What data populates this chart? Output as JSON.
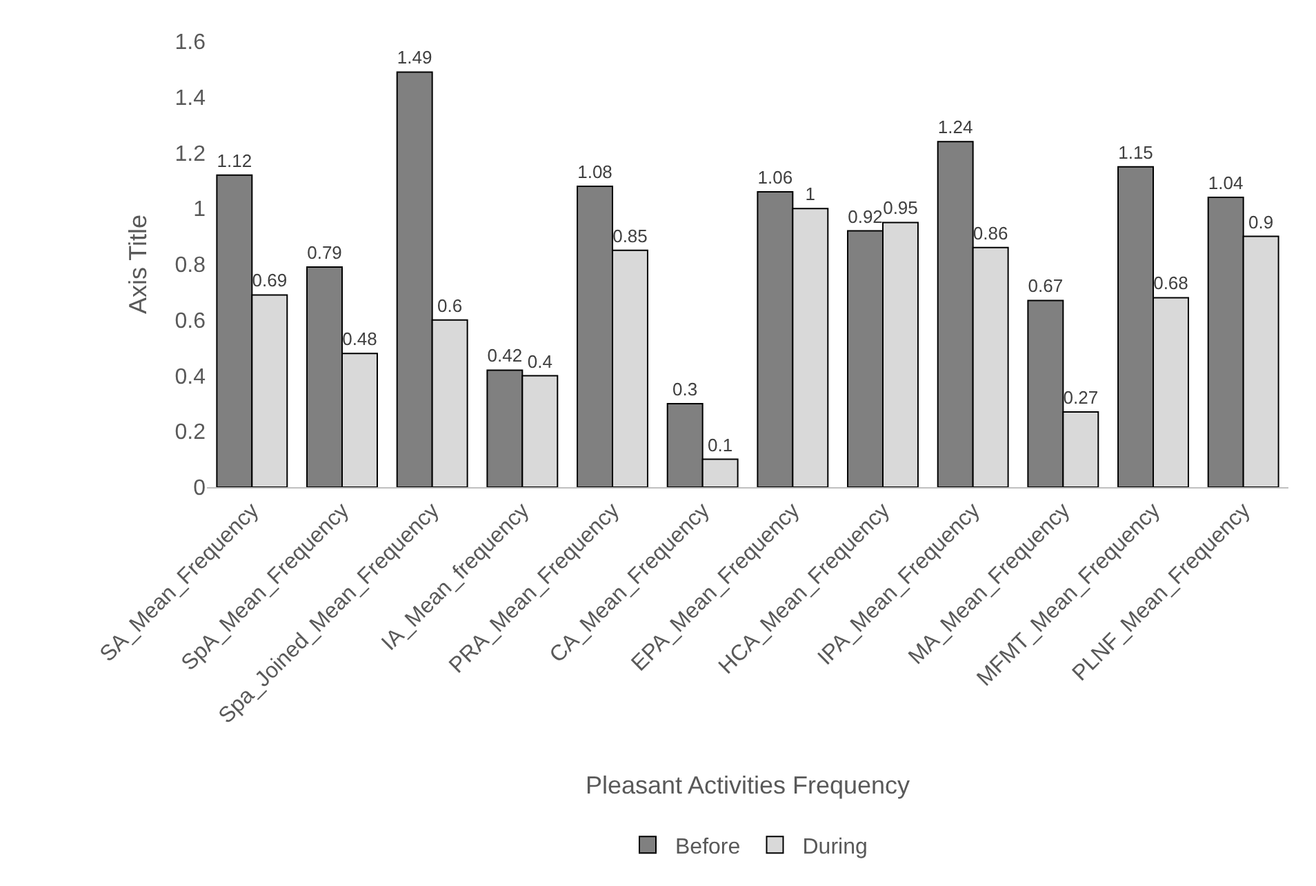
{
  "chart_data": {
    "type": "bar",
    "xlabel": "Pleasant Activities Frequency",
    "ylabel": "Axis Title",
    "categories": [
      "SA_Mean_Frequency",
      "SpA_Mean_Frequency",
      "Spa_Joined_Mean_Frequency",
      "IA_Mean_frequency",
      "PRA_Mean_Frequency",
      "CA_Mean_Frequency",
      "EPA_Mean_Frequency",
      "HCA_Mean_Frequency",
      "IPA_Mean_Frequency",
      "MA_Mean_Frequency",
      "MFMT_Mean_Frequency",
      "PLNF_Mean_Frequency"
    ],
    "series": [
      {
        "name": "Before",
        "color": "#808080",
        "values": [
          1.12,
          0.79,
          1.49,
          0.42,
          1.08,
          0.3,
          1.06,
          0.92,
          1.24,
          0.67,
          1.15,
          1.04
        ]
      },
      {
        "name": "During",
        "color": "#d9d9d9",
        "values": [
          0.69,
          0.48,
          0.6,
          0.4,
          0.85,
          0.1,
          1,
          0.95,
          0.86,
          0.27,
          0.68,
          0.9
        ]
      }
    ],
    "ylim": [
      0,
      1.6
    ],
    "yticks": [
      0,
      0.2,
      0.4,
      0.6,
      0.8,
      1,
      1.2,
      1.4,
      1.6
    ],
    "data_labels": true,
    "grid": false,
    "legend": "bottom"
  }
}
